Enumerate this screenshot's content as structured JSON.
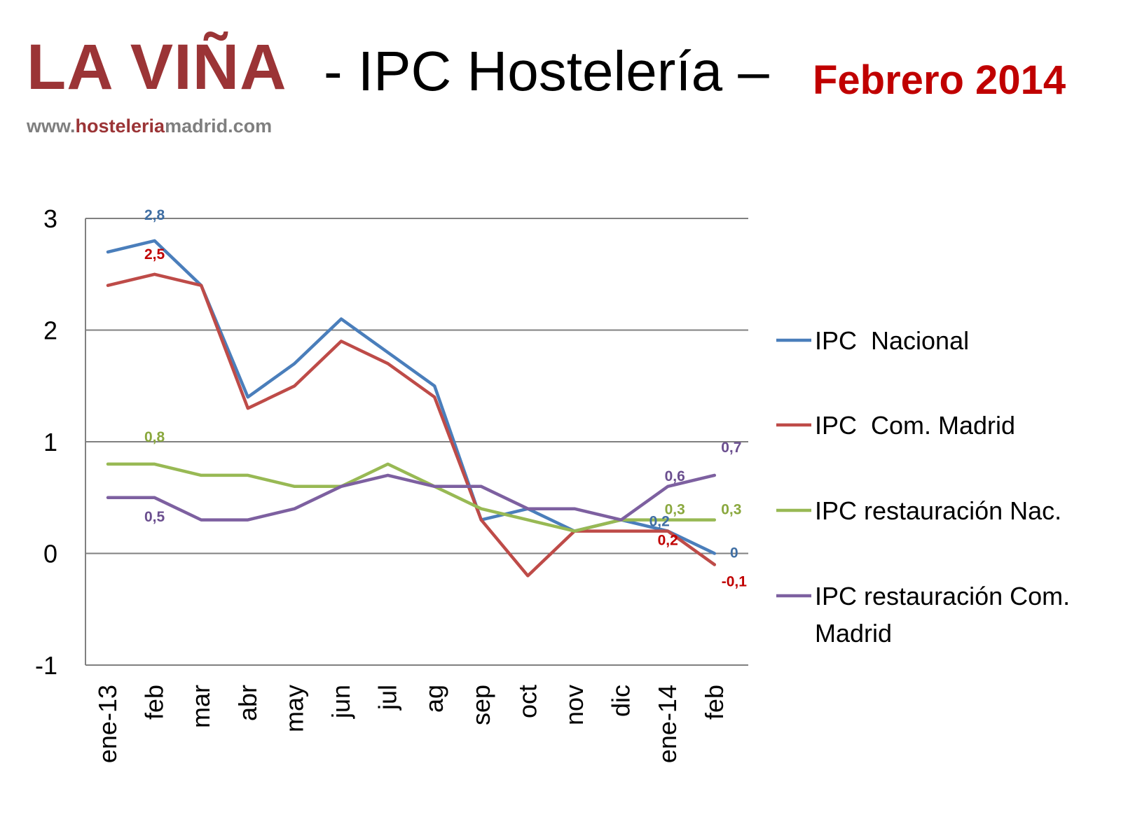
{
  "header": {
    "brand": "LA VIÑA",
    "title": "- IPC Hostelería –",
    "date": "Febrero 2014",
    "site_part1": "www.",
    "site_part2": "hosteleria",
    "site_part3": "madrid.com"
  },
  "colors": {
    "brand": "#9b3436",
    "date": "#c00000",
    "grid": "#808080",
    "axis": "#808080"
  },
  "chart_data": {
    "type": "line",
    "title": "",
    "xlabel": "",
    "ylabel": "",
    "ylim": [
      -1,
      3
    ],
    "yticks": [
      "-1",
      "0",
      "1",
      "2",
      "3"
    ],
    "grid": "horizontal",
    "legend_position": "right",
    "categories": [
      "ene-13",
      "feb",
      "mar",
      "abr",
      "may",
      "jun",
      "jul",
      "ag",
      "sep",
      "oct",
      "nov",
      "dic",
      "ene-14",
      "feb"
    ],
    "series": [
      {
        "name": "IPC  Nacional",
        "color": "#4a7ebb",
        "values": [
          2.7,
          2.8,
          2.4,
          1.4,
          1.7,
          2.1,
          1.8,
          1.5,
          0.3,
          0.4,
          0.2,
          0.3,
          0.2,
          0.0
        ]
      },
      {
        "name": "IPC  Com. Madrid",
        "color": "#be4b48",
        "values": [
          2.4,
          2.5,
          2.4,
          1.3,
          1.5,
          1.9,
          1.7,
          1.4,
          0.3,
          -0.2,
          0.2,
          0.2,
          0.2,
          -0.1
        ]
      },
      {
        "name": "IPC restauración Nac.",
        "color": "#98b954",
        "values": [
          0.8,
          0.8,
          0.7,
          0.7,
          0.6,
          0.6,
          0.8,
          0.6,
          0.4,
          0.3,
          0.2,
          0.3,
          0.3,
          0.3
        ]
      },
      {
        "name": "IPC restauración Com. Madrid",
        "name_line1": "IPC restauración Com.",
        "name_line2": "Madrid",
        "color": "#7d60a0",
        "values": [
          0.5,
          0.5,
          0.3,
          0.3,
          0.4,
          0.6,
          0.7,
          0.6,
          0.6,
          0.4,
          0.4,
          0.3,
          0.6,
          0.7
        ]
      }
    ],
    "data_labels": [
      {
        "series": 0,
        "index": 1,
        "text": "2,8"
      },
      {
        "series": 1,
        "index": 1,
        "text": "2,5"
      },
      {
        "series": 2,
        "index": 1,
        "text": "0,8"
      },
      {
        "series": 3,
        "index": 1,
        "text": "0,5"
      },
      {
        "series": 3,
        "index": 12,
        "text": "0,6"
      },
      {
        "series": 3,
        "index": 13,
        "text": "0,7"
      },
      {
        "series": 2,
        "index": 12,
        "text": "0,3"
      },
      {
        "series": 2,
        "index": 13,
        "text": "0,3"
      },
      {
        "series": 0,
        "index": 12,
        "text": "0,2"
      },
      {
        "series": 0,
        "index": 13,
        "text": "0"
      },
      {
        "series": 1,
        "index": 12,
        "text": "0,2"
      },
      {
        "series": 1,
        "index": 13,
        "text": "-0,1"
      }
    ]
  }
}
